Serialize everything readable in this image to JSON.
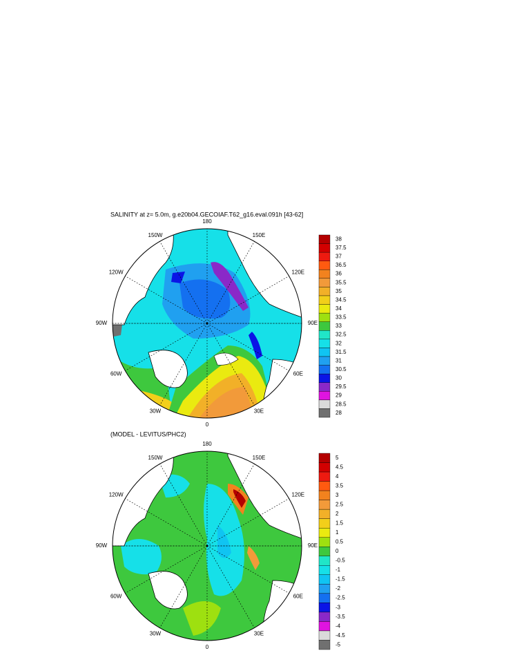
{
  "panels": [
    {
      "title": "SALINITY at z=   5.0m, g.e20b04.GECOIAF.T62_g16.eval.091h [43-62]",
      "lon_labels": [
        "180",
        "150E",
        "120E",
        "90E",
        "60E",
        "30E",
        "0",
        "30W",
        "60W",
        "90W",
        "120W",
        "150W"
      ],
      "colorbar": {
        "levels": [
          38,
          37.5,
          37,
          36.5,
          36,
          35.5,
          35,
          34.5,
          34,
          33.5,
          33,
          32.5,
          32,
          31.5,
          31,
          30.5,
          30,
          29.5,
          29,
          28.5,
          28
        ],
        "colors": [
          "#b40000",
          "#d20000",
          "#ee1a10",
          "#ff5a10",
          "#f2821e",
          "#f29a3a",
          "#f2b028",
          "#f2cf1a",
          "#eaea10",
          "#9ee010",
          "#3ec83e",
          "#20e6c8",
          "#16e0e8",
          "#10c4f2",
          "#20a0f0",
          "#1470f0",
          "#0a14e6",
          "#8a28c8",
          "#e014e0",
          "#dadada",
          "#707070"
        ]
      }
    },
    {
      "title": "(MODEL - LEVITUS/PHC2)",
      "lon_labels": [
        "180",
        "150E",
        "120E",
        "90E",
        "60E",
        "30E",
        "0",
        "30W",
        "60W",
        "90W",
        "120W",
        "150W"
      ],
      "colorbar": {
        "levels": [
          5,
          4.5,
          4,
          3.5,
          3,
          2.5,
          2,
          1.5,
          1,
          0.5,
          0,
          -0.5,
          -1,
          -1.5,
          -2,
          -2.5,
          -3,
          -3.5,
          -4,
          -4.5,
          -5
        ],
        "colors": [
          "#b40000",
          "#d20000",
          "#ee1a10",
          "#ff5a10",
          "#f2821e",
          "#f29a3a",
          "#f2b028",
          "#f2cf1a",
          "#eaea10",
          "#9ee010",
          "#3ec83e",
          "#20e6c8",
          "#16e0e8",
          "#10c4f2",
          "#20a0f0",
          "#1470f0",
          "#0a14e6",
          "#8a28c8",
          "#e014e0",
          "#dadada",
          "#707070"
        ]
      }
    }
  ]
}
